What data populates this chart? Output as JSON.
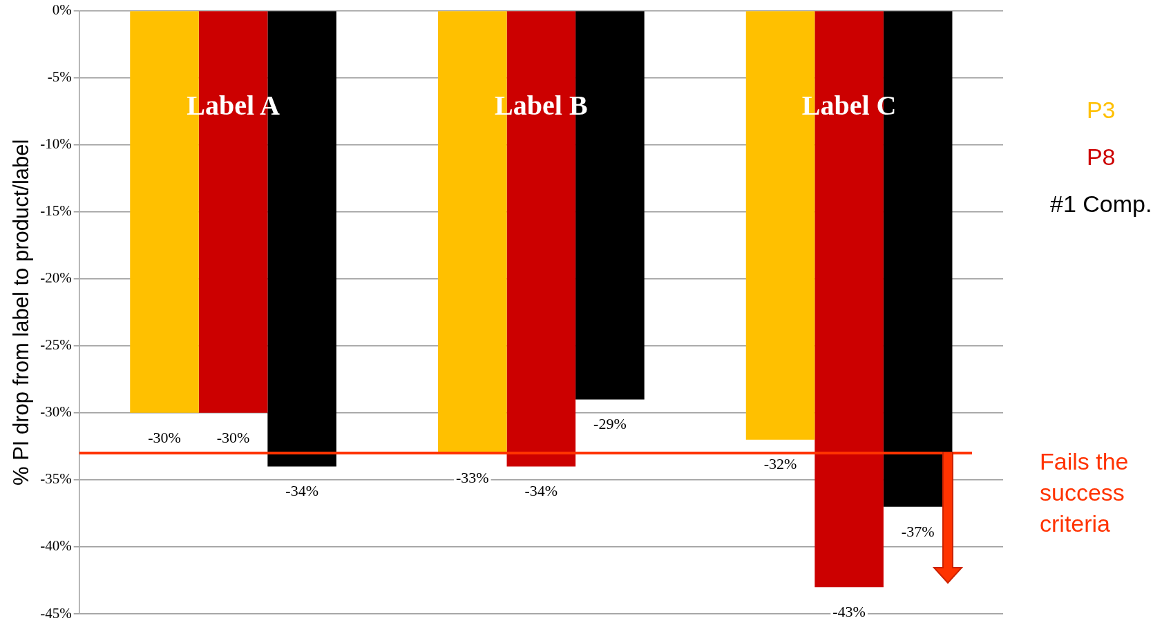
{
  "chart_data": {
    "type": "bar",
    "categories": [
      "Label A",
      "Label B",
      "Label C"
    ],
    "series": [
      {
        "name": "P3",
        "color": "#ffc000",
        "values": [
          -30,
          -33,
          -32
        ],
        "value_labels": [
          "-30%",
          "-33%",
          "-32%"
        ]
      },
      {
        "name": "P8",
        "color": "#cc0000",
        "values": [
          -30,
          -34,
          -43
        ],
        "value_labels": [
          "-30%",
          "-34%",
          "-43%"
        ]
      },
      {
        "name": "#1 Comp.",
        "color": "#000000",
        "values": [
          -34,
          -29,
          -37
        ],
        "value_labels": [
          "-34%",
          "-29%",
          "-37%"
        ]
      }
    ],
    "ylabel": "% PI drop from label to product/label",
    "ylim": [
      -45,
      0
    ],
    "yticks": [
      {
        "value": 0,
        "label": "0%"
      },
      {
        "value": -5,
        "label": "-5%"
      },
      {
        "value": -10,
        "label": "-10%"
      },
      {
        "value": -15,
        "label": "-15%"
      },
      {
        "value": -20,
        "label": "-20%"
      },
      {
        "value": -25,
        "label": "-25%"
      },
      {
        "value": -30,
        "label": "-30%"
      },
      {
        "value": -35,
        "label": "-35%"
      },
      {
        "value": -40,
        "label": "-40%"
      },
      {
        "value": -45,
        "label": "-45%"
      }
    ],
    "ref_lines": [
      {
        "axis": "y",
        "value": -33,
        "label": "Fails the success criteria",
        "color": "#ff3300"
      }
    ],
    "grid": "y",
    "legend": "right",
    "tick_labels": "y"
  }
}
